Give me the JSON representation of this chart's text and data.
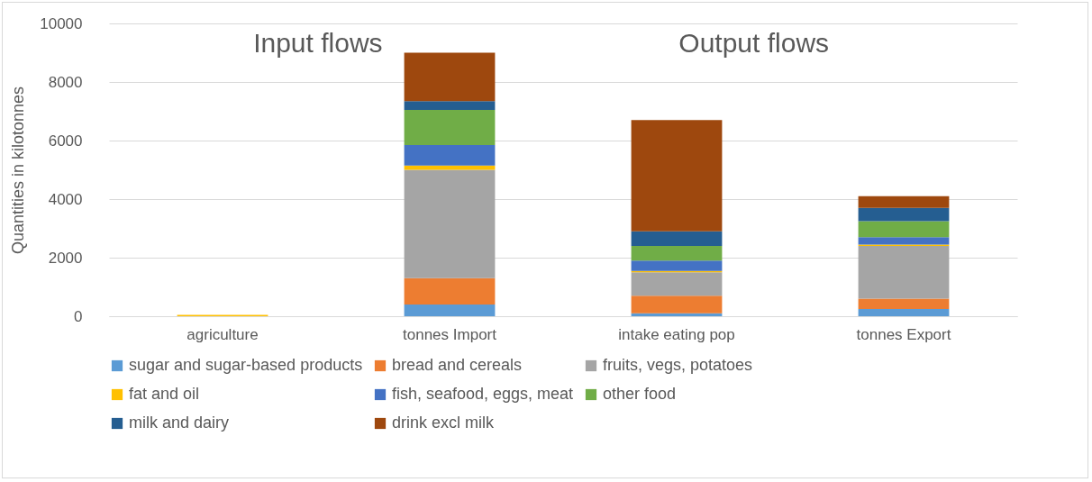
{
  "chart_data": {
    "type": "bar",
    "stacked": true,
    "ylabel": "Quantities in kilotonnes",
    "categories": [
      "agriculture",
      "tonnes Import",
      "intake eating pop",
      "tonnes Export"
    ],
    "series": [
      {
        "name": "sugar and sugar-based products",
        "color": "#5b9bd5",
        "values": [
          0,
          400,
          100,
          250
        ]
      },
      {
        "name": "bread and cereals",
        "color": "#ed7d31",
        "values": [
          0,
          900,
          600,
          350
        ]
      },
      {
        "name": "fruits, vegs, potatoes",
        "color": "#a5a5a5",
        "values": [
          0,
          3700,
          800,
          1800
        ]
      },
      {
        "name": "fat and oil",
        "color": "#ffc000",
        "values": [
          50,
          150,
          50,
          50
        ]
      },
      {
        "name": "fish, seafood, eggs, meat",
        "color": "#4472c4",
        "values": [
          0,
          700,
          350,
          250
        ]
      },
      {
        "name": "other food",
        "color": "#70ad47",
        "values": [
          0,
          1200,
          500,
          550
        ]
      },
      {
        "name": "milk and dairy",
        "color": "#255e91",
        "values": [
          0,
          300,
          500,
          450
        ]
      },
      {
        "name": "drink excl milk",
        "color": "#9e480e",
        "values": [
          0,
          1650,
          3800,
          400
        ]
      }
    ],
    "ylim": [
      0,
      10000
    ],
    "yticks": [
      0,
      2000,
      4000,
      6000,
      8000,
      10000
    ],
    "grid": "y",
    "legend": "bottom",
    "annotations": [
      "Input flows",
      "Output flows"
    ]
  }
}
